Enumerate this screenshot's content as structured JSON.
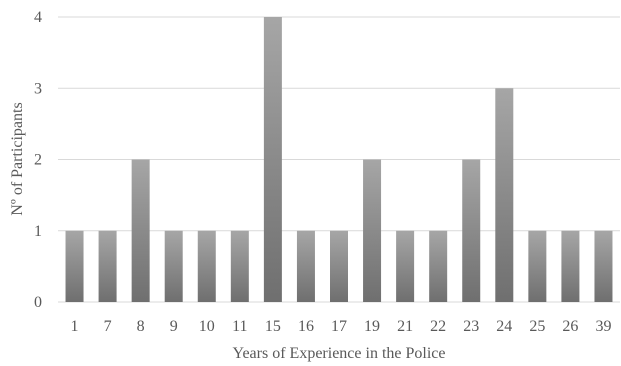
{
  "chart_data": {
    "type": "bar",
    "title": "",
    "xlabel": "Years of Experience in the Police",
    "ylabel": "Nº of Participants",
    "categories": [
      "1",
      "7",
      "8",
      "9",
      "10",
      "11",
      "15",
      "16",
      "17",
      "19",
      "21",
      "22",
      "23",
      "24",
      "25",
      "26",
      "39"
    ],
    "values": [
      1,
      1,
      2,
      1,
      1,
      1,
      4,
      1,
      1,
      2,
      1,
      1,
      2,
      3,
      1,
      1,
      1
    ],
    "ylim": [
      0,
      4
    ],
    "yticks": [
      0,
      1,
      2,
      3,
      4
    ],
    "grid": true,
    "legend": "none",
    "colors": {
      "bar_light": "#a6a6a6",
      "bar_dark": "#6f6f6f",
      "grid": "#d9d9d9",
      "text": "#595959"
    }
  }
}
